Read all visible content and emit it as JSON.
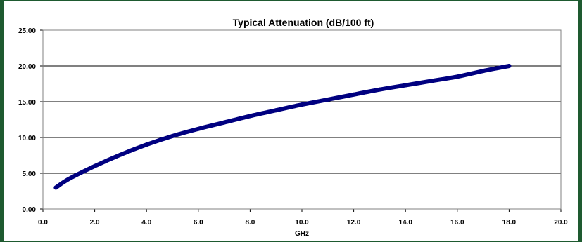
{
  "chart_data": {
    "type": "line",
    "title": "Typical Attenuation  (dB/100 ft)",
    "xlabel": "GHz",
    "ylabel": "",
    "xlim": [
      0,
      20
    ],
    "ylim": [
      0,
      25
    ],
    "x_ticks": [
      "0.0",
      "2.0",
      "4.0",
      "6.0",
      "8.0",
      "10.0",
      "12.0",
      "14.0",
      "16.0",
      "18.0",
      "20.0"
    ],
    "y_ticks": [
      "0.00",
      "5.00",
      "10.00",
      "15.00",
      "20.00",
      "25.00"
    ],
    "grid": "horizontal",
    "line_color": "#000080",
    "series": [
      {
        "x": [
          0.5,
          1.0,
          2.0,
          3.0,
          4.0,
          5.0,
          6.0,
          7.0,
          8.0,
          9.0,
          10.0,
          11.0,
          12.0,
          13.0,
          14.0,
          15.0,
          16.0,
          17.0,
          18.0
        ],
        "y": [
          3.0,
          4.2,
          6.0,
          7.6,
          9.0,
          10.2,
          11.2,
          12.1,
          13.0,
          13.8,
          14.6,
          15.3,
          16.0,
          16.7,
          17.3,
          17.9,
          18.5,
          19.3,
          20.0
        ]
      }
    ]
  }
}
